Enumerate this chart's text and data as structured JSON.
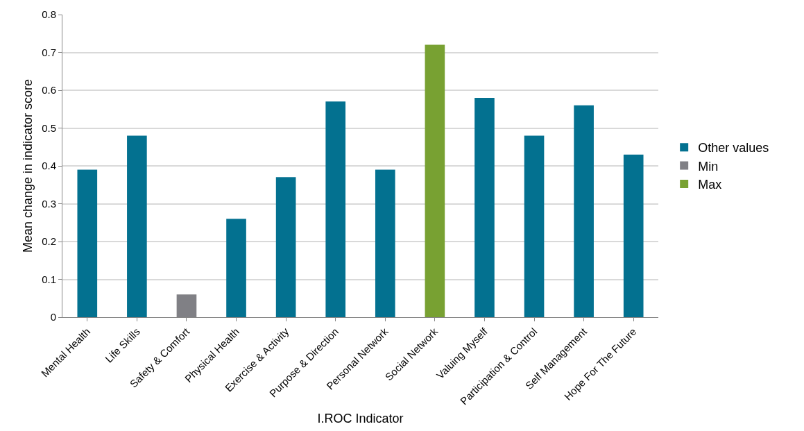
{
  "chart_data": {
    "type": "bar",
    "xlabel": "I.ROC Indicator",
    "ylabel": "Mean change in indicator score",
    "categories": [
      "Mental Health",
      "Life Skills",
      "Safety & Comfort",
      "Physical Health",
      "Exercise & Activity",
      "Purpose & Direction",
      "Personal Network",
      "Social Network",
      "Valuing Myself",
      "Participation & Control",
      "Self Management",
      "Hope For The Future"
    ],
    "series": [
      {
        "name": "Other values",
        "color": "#037190",
        "values": [
          0.39,
          0.48,
          null,
          0.26,
          0.37,
          0.57,
          0.39,
          null,
          0.58,
          0.48,
          0.56,
          0.43
        ]
      },
      {
        "name": "Min",
        "color": "#808085",
        "values": [
          null,
          null,
          0.06,
          null,
          null,
          null,
          null,
          null,
          null,
          null,
          null,
          null
        ]
      },
      {
        "name": "Max",
        "color": "#78a132",
        "values": [
          null,
          null,
          null,
          null,
          null,
          null,
          null,
          0.72,
          null,
          null,
          null,
          null
        ]
      }
    ],
    "ylim": [
      0,
      0.8
    ],
    "yticks": [
      0,
      0.1,
      0.2,
      0.3,
      0.4,
      0.5,
      0.6,
      0.7,
      0.8
    ],
    "grid": "y",
    "legend": "right"
  }
}
